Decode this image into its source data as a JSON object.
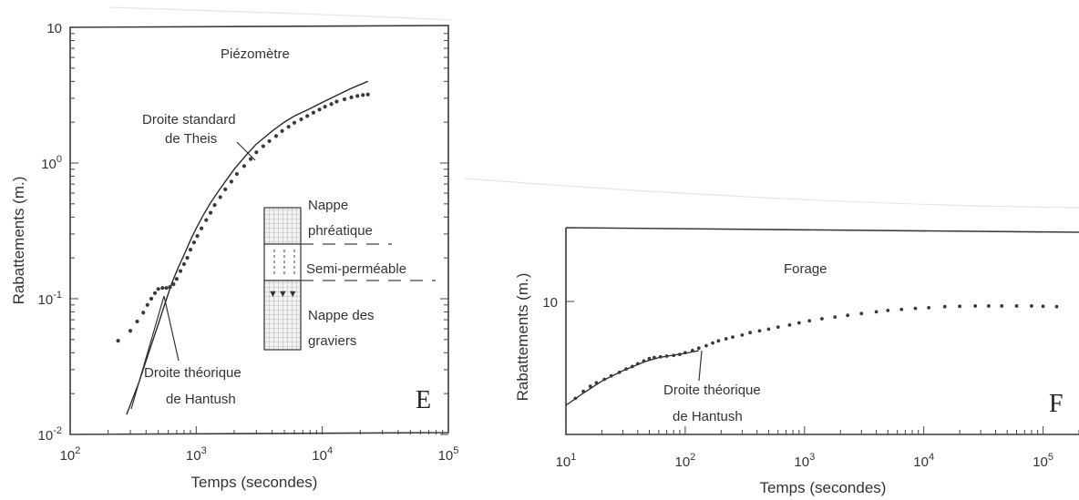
{
  "chart_data": [
    {
      "type": "scatter",
      "panel_letter": "E",
      "title": "Piézomètre",
      "xlabel": "Temps  (secondes)",
      "ylabel": "Rabattements   (m.)",
      "x_scale": "log",
      "y_scale": "log",
      "xlim": [
        100,
        100000
      ],
      "ylim": [
        0.01,
        10
      ],
      "x_ticks": [
        {
          "value": 100,
          "mantissa": "10",
          "exp": "2"
        },
        {
          "value": 1000,
          "mantissa": "10",
          "exp": "3"
        },
        {
          "value": 10000,
          "mantissa": "10",
          "exp": "4"
        },
        {
          "value": 100000,
          "mantissa": "10",
          "exp": "5"
        }
      ],
      "y_ticks": [
        {
          "value": 0.01,
          "mantissa": "10",
          "exp": "-2"
        },
        {
          "value": 0.1,
          "mantissa": "10",
          "exp": "-1"
        },
        {
          "value": 1,
          "mantissa": "10",
          "exp": "0"
        },
        {
          "value": 10,
          "mantissa": "10",
          "exp": ""
        }
      ],
      "series": [
        {
          "kind": "points",
          "x": [
            240,
            300,
            340,
            380,
            410,
            440,
            470,
            500,
            540,
            580,
            620,
            660,
            700,
            750,
            800,
            850,
            900,
            960,
            1020,
            1100,
            1200,
            1300,
            1400,
            1550,
            1700,
            1900,
            2100,
            2400,
            2700,
            3000,
            3400,
            3800,
            4300,
            4800,
            5400,
            6000,
            6800,
            7600,
            8500,
            9500,
            10500,
            11800,
            13000,
            15000,
            17000,
            19000,
            21000,
            23000
          ],
          "y": [
            0.049,
            0.058,
            0.068,
            0.079,
            0.09,
            0.1,
            0.11,
            0.118,
            0.12,
            0.12,
            0.122,
            0.128,
            0.14,
            0.16,
            0.18,
            0.2,
            0.23,
            0.26,
            0.29,
            0.33,
            0.38,
            0.43,
            0.49,
            0.56,
            0.64,
            0.73,
            0.83,
            0.95,
            1.07,
            1.2,
            1.33,
            1.45,
            1.58,
            1.72,
            1.85,
            1.98,
            2.1,
            2.22,
            2.35,
            2.48,
            2.6,
            2.72,
            2.84,
            2.95,
            3.05,
            3.12,
            3.17,
            3.2
          ]
        },
        {
          "kind": "curve",
          "x": [
            280,
            350,
            420,
            500,
            560,
            640,
            720,
            800,
            900,
            1000,
            1150,
            1300,
            1500,
            1750,
            2000,
            2500,
            3000,
            4000,
            5000,
            6000,
            8000,
            10000,
            13000,
            17000,
            23000
          ],
          "y": [
            0.014,
            0.024,
            0.04,
            0.065,
            0.09,
            0.13,
            0.17,
            0.21,
            0.27,
            0.33,
            0.42,
            0.51,
            0.62,
            0.76,
            0.9,
            1.15,
            1.38,
            1.72,
            2.0,
            2.22,
            2.52,
            2.8,
            3.15,
            3.55,
            4.0
          ]
        }
      ],
      "annotations": {
        "theis": [
          "Droite standard",
          "de Theis"
        ],
        "hantush": [
          "Droite théorique",
          "de Hantush"
        ],
        "layers": [
          "Nappe",
          "phréatique",
          "Semi-perméable",
          "Nappe des",
          "graviers"
        ]
      }
    },
    {
      "type": "scatter",
      "panel_letter": "F",
      "title": "Forage",
      "xlabel": "Temps  (secondes)",
      "ylabel": "Rabattements   (m.)",
      "x_scale": "log",
      "xlim": [
        10,
        200000
      ],
      "x_ticks": [
        {
          "value": 10,
          "mantissa": "10",
          "exp": "1"
        },
        {
          "value": 100,
          "mantissa": "10",
          "exp": "2"
        },
        {
          "value": 1000,
          "mantissa": "10",
          "exp": "3"
        },
        {
          "value": 10000,
          "mantissa": "10",
          "exp": "4"
        },
        {
          "value": 100000,
          "mantissa": "10",
          "exp": "5"
        }
      ],
      "y_ticks": [
        {
          "value": 10,
          "mantissa": "10",
          "exp": ""
        }
      ],
      "series": [
        {
          "kind": "points",
          "x": [
            12,
            14,
            16,
            18,
            21,
            24,
            28,
            32,
            36,
            40,
            45,
            50,
            55,
            62,
            70,
            80,
            90,
            100,
            115,
            130,
            150,
            170,
            190,
            220,
            250,
            300,
            350,
            420,
            500,
            600,
            750,
            900,
            1100,
            1400,
            1800,
            2300,
            3000,
            4000,
            5000,
            6500,
            8500,
            11000,
            15000,
            20000,
            27000,
            35000,
            45000,
            60000,
            80000,
            100000,
            130000
          ],
          "y": [
            7.2,
            7.4,
            7.55,
            7.65,
            7.75,
            7.85,
            7.95,
            8.05,
            8.12,
            8.2,
            8.28,
            8.35,
            8.38,
            8.4,
            8.42,
            8.44,
            8.47,
            8.52,
            8.58,
            8.65,
            8.72,
            8.8,
            8.86,
            8.92,
            8.97,
            9.03,
            9.1,
            9.15,
            9.2,
            9.26,
            9.32,
            9.38,
            9.44,
            9.5,
            9.55,
            9.6,
            9.65,
            9.7,
            9.74,
            9.77,
            9.8,
            9.82,
            9.85,
            9.86,
            9.87,
            9.87,
            9.87,
            9.87,
            9.87,
            9.86,
            9.85
          ]
        },
        {
          "kind": "curve",
          "x": [
            10,
            14,
            20,
            30,
            45,
            60,
            80,
            100,
            130
          ],
          "y": [
            7.0,
            7.35,
            7.7,
            8.0,
            8.25,
            8.38,
            8.45,
            8.5,
            8.58
          ]
        }
      ],
      "annotations": {
        "hantush": [
          "Droite théorique",
          "de Hantush"
        ]
      }
    }
  ]
}
